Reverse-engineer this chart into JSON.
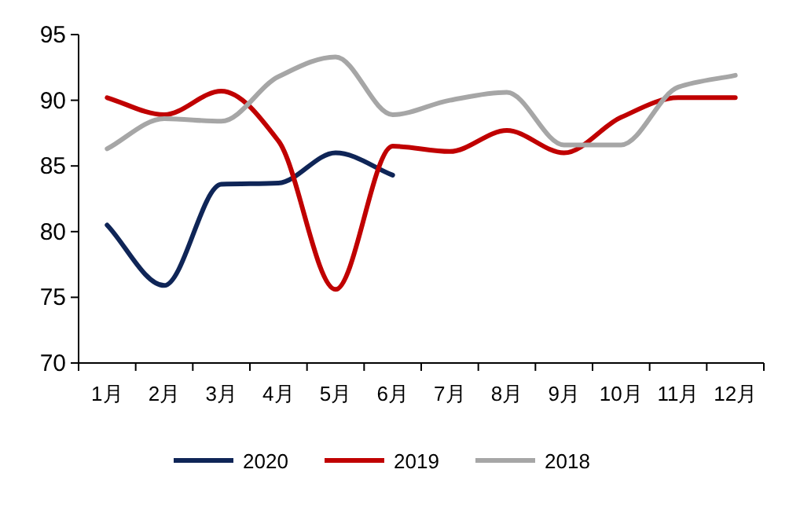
{
  "chart_data": {
    "type": "line",
    "categories": [
      "1月",
      "2月",
      "3月",
      "4月",
      "5月",
      "6月",
      "7月",
      "8月",
      "9月",
      "10月",
      "11月",
      "12月"
    ],
    "series": [
      {
        "name": "2020",
        "color": "#0f2557",
        "values": [
          80.5,
          75.9,
          83.6,
          83.7,
          86.0,
          84.3,
          null,
          null,
          null,
          null,
          null,
          null
        ]
      },
      {
        "name": "2019",
        "color": "#c00000",
        "values": [
          90.2,
          88.9,
          90.7,
          86.9,
          75.6,
          86.5,
          86.1,
          87.7,
          86.0,
          88.7,
          90.2,
          90.2
        ]
      },
      {
        "name": "2018",
        "color": "#a6a6a6",
        "values": [
          86.3,
          88.6,
          88.4,
          91.8,
          93.3,
          88.9,
          90.0,
          90.6,
          86.6,
          86.6,
          91.0,
          91.9
        ]
      }
    ],
    "ylim": [
      70,
      95
    ],
    "yticks": [
      70,
      75,
      80,
      85,
      90,
      95
    ],
    "legend": "bottom"
  }
}
